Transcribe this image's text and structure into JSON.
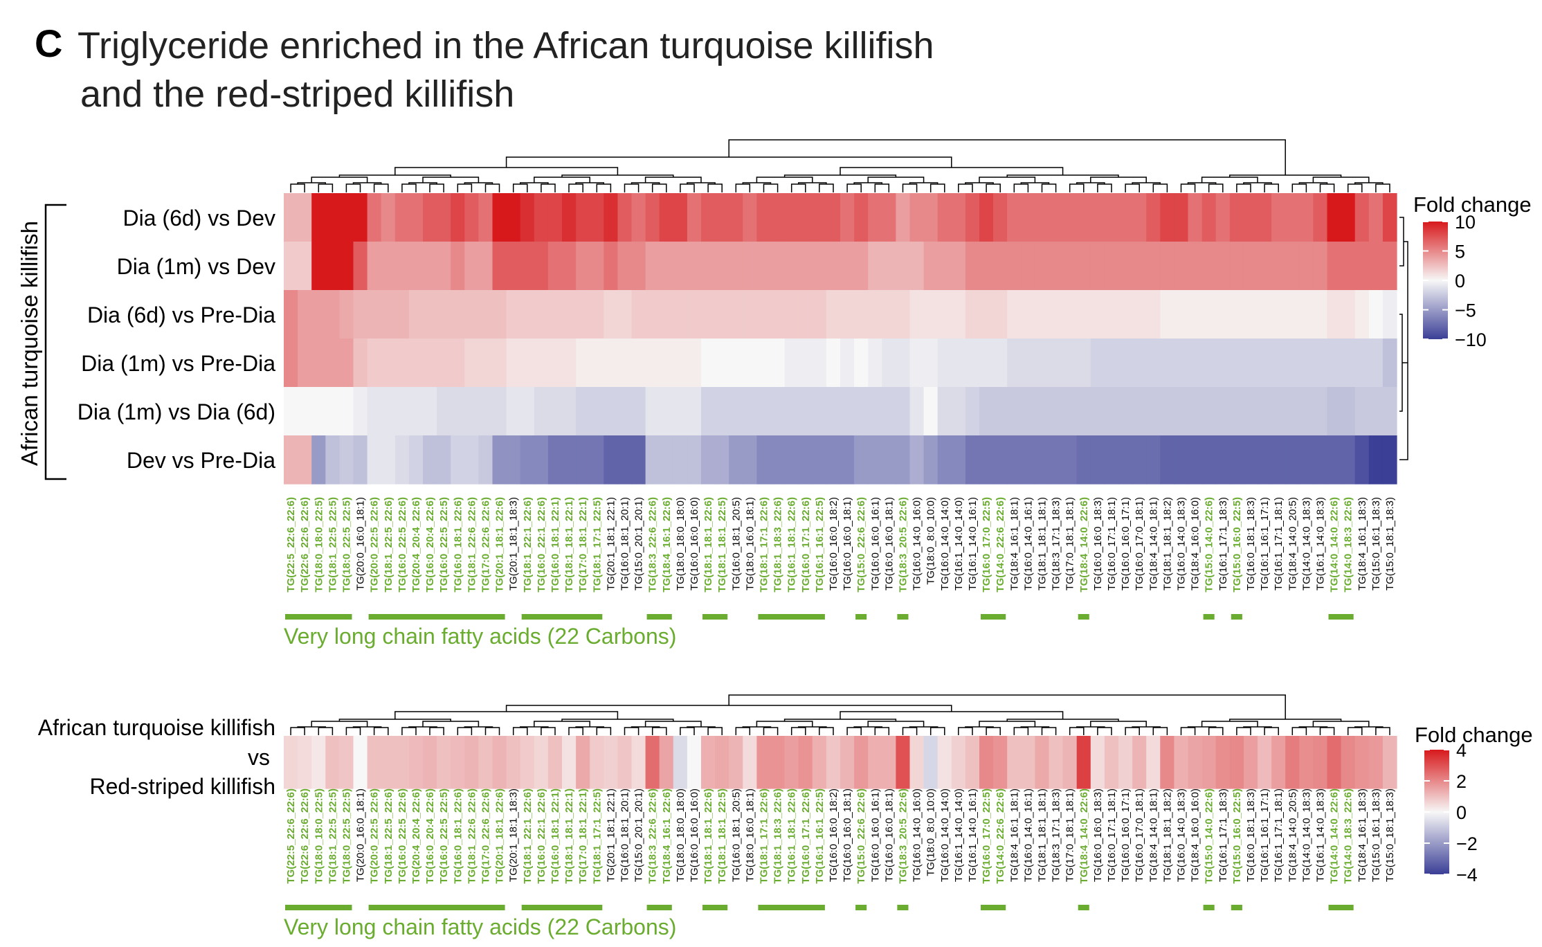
{
  "panel_letter": "C",
  "title_line1": "Triglyceride enriched in the African turquoise killifish",
  "title_line2": "and the red-striped killifish",
  "colors": {
    "high": "#d7191c",
    "mid": "#f7f7f7",
    "low": "#3b3f96",
    "green": "#6aac2f",
    "text": "#000000"
  },
  "footnote_label": "Very long chain fatty acids (22 Carbons)",
  "chart_data": [
    {
      "type": "heatmap",
      "group_label": "African turquoise killifish",
      "legend_title": "Fold change",
      "legend_ticks": [
        10,
        5,
        0,
        -5,
        -10
      ],
      "range": [
        -10,
        10
      ],
      "rows": [
        "Dia (6d) vs Dev",
        "Dia (1m) vs Dev",
        "Dia (6d) vs Pre-Dia",
        "Dia (1m) vs Pre-Dia",
        "Dia (1m) vs Dia (6d)",
        "Dev vs Pre-Dia"
      ],
      "columns": [
        "TG(22:5_22:6_22:6)",
        "TG(22:6_22:6_22:6)",
        "TG(18:0_18:0_22:5)",
        "TG(18:1_22:5_22:5)",
        "TG(18:0_22:5_22:5)",
        "TG(20:0_16:0_18:1)",
        "TG(20:0_22:5_22:6)",
        "TG(18:1_22:5_22:6)",
        "TG(16:0_22:5_22:6)",
        "TG(20:4_20:4_22:6)",
        "TG(16:0_20:4_22:6)",
        "TG(16:0_22:5_22:5)",
        "TG(16:0_18:1_22:6)",
        "TG(18:1_22:6_22:6)",
        "TG(17:0_22:6_22:6)",
        "TG(20:1_18:1_22:6)",
        "TG(20:1_18:1_18:3)",
        "TG(18:1_22:1_22:6)",
        "TG(16:0_22:1_22:6)",
        "TG(16:0_18:1_22:1)",
        "TG(18:1_18:1_22:1)",
        "TG(17:0_18:1_22:1)",
        "TG(18:1_17:1_22:5)",
        "TG(20:1_18:1_22:1)",
        "TG(16:0_18:1_20:1)",
        "TG(15:0_20:1_20:1)",
        "TG(18:3_22:6_22:6)",
        "TG(18:4_16:1_22:6)",
        "TG(18:0_18:0_18:0)",
        "TG(16:0_16:0_16:0)",
        "TG(18:1_18:1_22:6)",
        "TG(18:1_18:1_22:5)",
        "TG(16:0_18:1_20:5)",
        "TG(18:0_16:0_18:1)",
        "TG(18:1_17:1_22:6)",
        "TG(18:1_18:3_22:6)",
        "TG(16:1_18:1_22:6)",
        "TG(16:0_17:1_22:6)",
        "TG(16:1_16:1_22:5)",
        "TG(16:0_16:0_18:2)",
        "TG(16:0_16:0_18:1)",
        "TG(15:0_22:6_22:6)",
        "TG(16:0_16:0_16:1)",
        "TG(16:0_16:0_18:1)",
        "TG(18:3_20:5_22:6)",
        "TG(16:0_14:0_16:0)",
        "TG(18:0_8:0_10:0)",
        "TG(16:0_14:0_14:0)",
        "TG(16:1_14:0_14:0)",
        "TG(16:1_14:0_16:1)",
        "TG(16:0_17:0_22:5)",
        "TG(14:0_22:6_22:6)",
        "TG(18:4_16:1_18:1)",
        "TG(16:0_14:0_16:1)",
        "TG(18:1_18:1_18:1)",
        "TG(18:3_17:1_18:3)",
        "TG(17:0_18:1_18:1)",
        "TG(18:4_14:0_22:6)",
        "TG(16:0_16:0_18:3)",
        "TG(16:0_17:1_18:1)",
        "TG(16:0_16:0_17:1)",
        "TG(16:0_17:0_18:1)",
        "TG(18:4_14:0_18:1)",
        "TG(18:1_18:1_18:2)",
        "TG(16:0_14:0_18:3)",
        "TG(18:4_16:0_16:0)",
        "TG(15:0_14:0_22:6)",
        "TG(16:1_17:1_18:3)",
        "TG(15:0_16:0_22:5)",
        "TG(16:0_18:1_18:3)",
        "TG(16:1_16:1_17:1)",
        "TG(16:1_17:1_18:1)",
        "TG(18:4_14:0_20:5)",
        "TG(14:0_14:0_18:3)",
        "TG(16:1_14:0_18:3)",
        "TG(14:0_14:0_22:6)",
        "TG(14:0_18:3_22:6)",
        "TG(18:4_16:1_18:3)",
        "TG(15:0_16:1_18:3)",
        "TG(15:0_18:1_18:3)"
      ],
      "green_columns": [
        0,
        1,
        2,
        3,
        4,
        6,
        7,
        8,
        9,
        10,
        11,
        12,
        13,
        14,
        15,
        17,
        18,
        19,
        20,
        21,
        22,
        26,
        27,
        30,
        31,
        34,
        35,
        36,
        37,
        38,
        41,
        44,
        50,
        51,
        57,
        66,
        68,
        75,
        76
      ],
      "values": [
        [
          3,
          3,
          10.5,
          10,
          10,
          11,
          6,
          5,
          6,
          6,
          7,
          7,
          8,
          7,
          6,
          10,
          10,
          9,
          8,
          8,
          9,
          8,
          8,
          9,
          7,
          6,
          7,
          8,
          8,
          6,
          7,
          7,
          7,
          6,
          7,
          7,
          7,
          7,
          7,
          7,
          6,
          7,
          6,
          6,
          4,
          5,
          5,
          6,
          6,
          7,
          8,
          7,
          6,
          6,
          6,
          6,
          6,
          6,
          6,
          6,
          6,
          6,
          7,
          8,
          8,
          6,
          7,
          6,
          7,
          7,
          7,
          6,
          6,
          6,
          7,
          10,
          10,
          7,
          6,
          8
        ],
        [
          2,
          2,
          10,
          10,
          10,
          7,
          4,
          4,
          4,
          4,
          4,
          4,
          5,
          4,
          4,
          7,
          7,
          7,
          7,
          6,
          6,
          5,
          5,
          6,
          5,
          5,
          4,
          4,
          4,
          4,
          4,
          4,
          4,
          4,
          4,
          4,
          4,
          4,
          4,
          4,
          4,
          4,
          3,
          3,
          3,
          3,
          4,
          4,
          4,
          5,
          5,
          5,
          5,
          5,
          5,
          5,
          5,
          5,
          5,
          5,
          5,
          5,
          5,
          5,
          5,
          5,
          5,
          5,
          5,
          5,
          5,
          5,
          5,
          5,
          5,
          6,
          6,
          6,
          6,
          6
        ],
        [
          5,
          4,
          4,
          4,
          3.5,
          3,
          3,
          3,
          3,
          2.5,
          2.5,
          2.5,
          2.5,
          2.5,
          2.5,
          2.5,
          2,
          2,
          2,
          2,
          2,
          2,
          2,
          1.5,
          1.5,
          2,
          2,
          2,
          2,
          2,
          2,
          2,
          2,
          2,
          2,
          2,
          2,
          2,
          2,
          1.5,
          1.5,
          1.5,
          1.5,
          1.5,
          1.5,
          1,
          1,
          1,
          1,
          1.5,
          1.5,
          1.5,
          1,
          1,
          1,
          1,
          1,
          1,
          1,
          1,
          1,
          1,
          1,
          0.5,
          0.5,
          0.5,
          0.5,
          0.5,
          0.5,
          0.5,
          0.5,
          0.5,
          0.5,
          0.5,
          0.5,
          1,
          1,
          0.5,
          0,
          -0.5
        ],
        [
          5,
          4,
          4,
          4,
          4,
          2.5,
          2,
          2,
          2,
          2,
          2,
          2,
          2,
          1.5,
          1.5,
          1.5,
          1,
          1,
          1,
          1,
          1,
          0.5,
          0.5,
          0.5,
          0.5,
          0.5,
          0.5,
          0.5,
          0.5,
          0.5,
          0,
          0,
          0,
          0,
          0,
          0,
          -0.5,
          -0.5,
          -0.5,
          0,
          -0.5,
          0,
          -0.5,
          -1,
          -1,
          -0.5,
          -0.5,
          -1,
          -1,
          -1,
          -1,
          -1,
          -1.5,
          -1.5,
          -1.5,
          -1.5,
          -1.5,
          -1.5,
          -2,
          -2,
          -2,
          -2,
          -2,
          -2,
          -2,
          -2,
          -2,
          -2,
          -2,
          -2,
          -2,
          -2,
          -2,
          -2,
          -2,
          -2,
          -2,
          -2,
          -2,
          -3
        ],
        [
          0,
          0,
          0,
          0,
          0,
          -0.5,
          -1,
          -1,
          -1,
          -1,
          -1,
          -1.5,
          -1.5,
          -1.5,
          -1.5,
          -1.5,
          -1,
          -1,
          -1.5,
          -1.5,
          -1.5,
          -2,
          -2,
          -2,
          -2,
          -2,
          -1,
          -1,
          -1,
          -1,
          -2,
          -2,
          -2,
          -2,
          -2,
          -2,
          -2,
          -2,
          -2,
          -2,
          -2,
          -2,
          -2,
          -2,
          -2,
          -1,
          0,
          -1.5,
          -1.5,
          -2,
          -2.5,
          -2.5,
          -2.5,
          -2.5,
          -2.5,
          -2.5,
          -2.5,
          -2.5,
          -2.5,
          -2.5,
          -2.5,
          -2.5,
          -2.5,
          -2.5,
          -2.5,
          -2.5,
          -2.5,
          -2.5,
          -2.5,
          -2.5,
          -2.5,
          -2.5,
          -2.5,
          -2.5,
          -2.5,
          -3,
          -3,
          -2.5,
          -2.5,
          -2.5
        ],
        [
          3,
          3,
          -5,
          -3,
          -2.5,
          -3,
          -1,
          -1,
          -1.5,
          -2,
          -3,
          -3,
          -2,
          -2,
          -2.5,
          -5.5,
          -5.5,
          -6,
          -6,
          -7,
          -7,
          -7,
          -7,
          -8,
          -8,
          -8,
          -3,
          -3,
          -3,
          -3,
          -4,
          -4,
          -5,
          -5,
          -6,
          -6,
          -6,
          -6,
          -6,
          -6,
          -6,
          -5,
          -5,
          -5,
          -5,
          -4,
          -5,
          -6,
          -6,
          -7,
          -7,
          -7,
          -7,
          -7,
          -7,
          -7,
          -7,
          -7.5,
          -7.5,
          -7.5,
          -7.5,
          -7.5,
          -7.5,
          -8,
          -8,
          -8,
          -8,
          -8,
          -8,
          -8,
          -8,
          -8,
          -8,
          -8,
          -8,
          -8,
          -8,
          -9,
          -10,
          -10
        ]
      ]
    },
    {
      "type": "heatmap",
      "rows": [
        "African turquoise killifish",
        "vs",
        "Red-striped killifish"
      ],
      "legend_title": "Fold change",
      "legend_ticks": [
        4,
        2,
        0,
        -2,
        -4
      ],
      "range": [
        -4,
        4
      ],
      "columns": [
        "TG(22:5_22:6_22:6)",
        "TG(22:6_22:6_22:6)",
        "TG(18:0_18:0_22:5)",
        "TG(18:1_22:5_22:5)",
        "TG(18:0_22:5_22:5)",
        "TG(20:0_16:0_18:1)",
        "TG(20:0_22:5_22:6)",
        "TG(18:1_22:5_22:6)",
        "TG(16:0_22:5_22:6)",
        "TG(20:4_20:4_22:6)",
        "TG(16:0_20:4_22:6)",
        "TG(16:0_22:5_22:5)",
        "TG(16:0_18:1_22:6)",
        "TG(18:1_22:6_22:6)",
        "TG(17:0_22:6_22:6)",
        "TG(20:1_18:1_22:6)",
        "TG(20:1_18:1_18:3)",
        "TG(18:1_22:1_22:6)",
        "TG(16:0_22:1_22:6)",
        "TG(16:0_18:1_22:1)",
        "TG(18:1_18:1_22:1)",
        "TG(17:0_18:1_22:1)",
        "TG(18:1_17:1_22:5)",
        "TG(20:1_18:1_22:1)",
        "TG(16:0_18:1_20:1)",
        "TG(15:0_20:1_20:1)",
        "TG(18:3_22:6_22:6)",
        "TG(18:4_16:1_22:6)",
        "TG(18:0_18:0_18:0)",
        "TG(16:0_16:0_16:0)",
        "TG(18:1_18:1_22:6)",
        "TG(18:1_18:1_22:5)",
        "TG(16:0_18:1_20:5)",
        "TG(18:0_16:0_18:1)",
        "TG(18:1_17:1_22:6)",
        "TG(18:1_18:3_22:6)",
        "TG(16:1_18:1_22:6)",
        "TG(16:0_17:1_22:6)",
        "TG(16:1_16:1_22:5)",
        "TG(16:0_16:0_18:2)",
        "TG(16:0_16:0_18:1)",
        "TG(15:0_22:6_22:6)",
        "TG(16:0_16:0_16:1)",
        "TG(16:0_16:0_18:1)",
        "TG(18:3_20:5_22:6)",
        "TG(16:0_14:0_16:0)",
        "TG(18:0_8:0_10:0)",
        "TG(16:0_14:0_14:0)",
        "TG(16:1_14:0_14:0)",
        "TG(16:1_14:0_16:1)",
        "TG(16:0_17:0_22:5)",
        "TG(14:0_22:6_22:6)",
        "TG(18:4_16:1_18:1)",
        "TG(16:0_14:0_16:1)",
        "TG(18:1_18:1_18:1)",
        "TG(18:3_17:1_18:3)",
        "TG(17:0_18:1_18:1)",
        "TG(18:4_14:0_22:6)",
        "TG(16:0_16:0_18:3)",
        "TG(16:0_17:1_18:1)",
        "TG(16:0_16:0_17:1)",
        "TG(16:0_17:0_18:1)",
        "TG(18:4_14:0_18:1)",
        "TG(18:1_18:1_18:2)",
        "TG(16:0_14:0_18:3)",
        "TG(18:4_16:0_16:0)",
        "TG(15:0_14:0_22:6)",
        "TG(16:1_17:1_18:3)",
        "TG(15:0_16:0_22:5)",
        "TG(16:0_18:1_18:3)",
        "TG(16:1_16:1_17:1)",
        "TG(16:1_17:1_18:1)",
        "TG(18:4_14:0_20:5)",
        "TG(14:0_14:0_18:3)",
        "TG(16:1_14:0_18:3)",
        "TG(14:0_14:0_22:6)",
        "TG(14:0_18:3_22:6)",
        "TG(18:4_16:1_18:3)",
        "TG(15:0_16:1_18:3)",
        "TG(15:0_18:1_18:3)"
      ],
      "green_columns": [
        0,
        1,
        2,
        3,
        4,
        6,
        7,
        8,
        9,
        10,
        11,
        12,
        13,
        14,
        15,
        17,
        18,
        19,
        20,
        21,
        22,
        26,
        27,
        30,
        31,
        34,
        35,
        36,
        37,
        38,
        41,
        44,
        50,
        51,
        57,
        66,
        68,
        75,
        76
      ],
      "values": [
        [
          0.6,
          0.5,
          0.3,
          1.0,
          0.9,
          0,
          1.0,
          1.0,
          1.0,
          1.1,
          1.2,
          1.0,
          1.1,
          1.2,
          1.0,
          1.2,
          1.0,
          0.8,
          0.6,
          1.0,
          0.4,
          1.4,
          0.8,
          0.7,
          0.9,
          0.5,
          2.5,
          1.5,
          -0.6,
          0,
          1.3,
          1.4,
          1.2,
          0.5,
          1.8,
          1.8,
          1.6,
          1.8,
          1.3,
          0.9,
          1.2,
          1.7,
          1.3,
          1.3,
          3.0,
          0.6,
          -0.7,
          0.4,
          0.7,
          1.0,
          2.0,
          1.8,
          1.0,
          1.0,
          1.4,
          1.0,
          1.2,
          3.3,
          0.5,
          1.0,
          0.7,
          1.2,
          0.5,
          2.0,
          1.3,
          1.5,
          1.6,
          1.9,
          2.0,
          1.6,
          1.1,
          1.6,
          2.2,
          1.9,
          2.0,
          2.5,
          2.0,
          1.8,
          1.7,
          1.2
        ]
      ]
    }
  ]
}
